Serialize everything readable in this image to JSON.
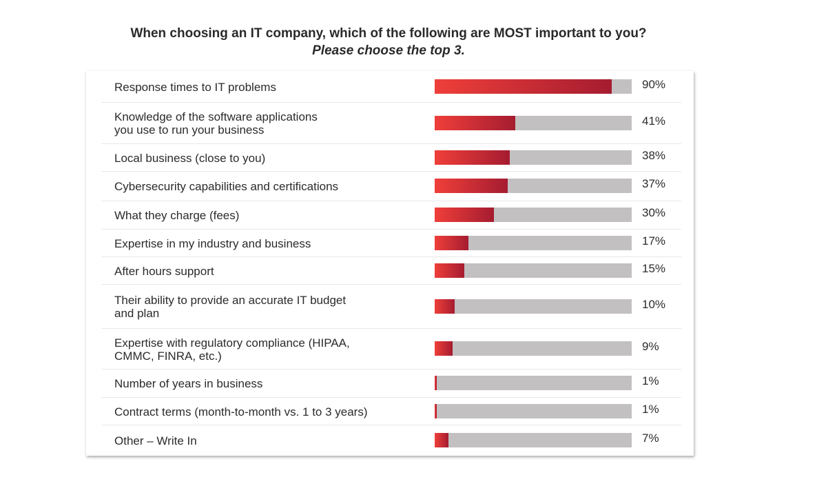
{
  "chart_data": {
    "type": "bar",
    "orientation": "horizontal",
    "title": "When choosing an IT company, which of the following are MOST important to you?",
    "title_parts": {
      "before": "When choosing an IT company, which of the following are ",
      "bold": "MOST",
      "after": " important to you?"
    },
    "subtitle": "Please choose the top 3.",
    "xlabel": "",
    "ylabel": "",
    "xlim": [
      0,
      100
    ],
    "unit": "%",
    "categories": [
      [
        "Response times to IT problems"
      ],
      [
        "Knowledge of the software applications",
        "you use to run your business"
      ],
      [
        "Local business (close to you)"
      ],
      [
        "Cybersecurity capabilities and certifications"
      ],
      [
        "What they charge (fees)"
      ],
      [
        "Expertise in my industry and business"
      ],
      [
        "After hours support"
      ],
      [
        "Their ability to provide an accurate IT budget",
        "and plan"
      ],
      [
        "Expertise with regulatory compliance (HIPAA,",
        "CMMC, FINRA, etc.)"
      ],
      [
        "Number of years in business"
      ],
      [
        "Contract terms (month-to-month vs. 1 to 3 years)"
      ],
      [
        "Other – Write In"
      ]
    ],
    "values": [
      90,
      41,
      38,
      37,
      30,
      17,
      15,
      10,
      9,
      1,
      1,
      7
    ],
    "value_labels": [
      "90%",
      "41%",
      "38%",
      "37%",
      "30%",
      "17%",
      "15%",
      "10%",
      "9%",
      "1%",
      "1%",
      "7%"
    ],
    "colors": {
      "fill_start": "#ef3f3a",
      "fill_end": "#a51c30",
      "track": "#c3c0c1"
    },
    "grid": false,
    "legend": "none"
  }
}
